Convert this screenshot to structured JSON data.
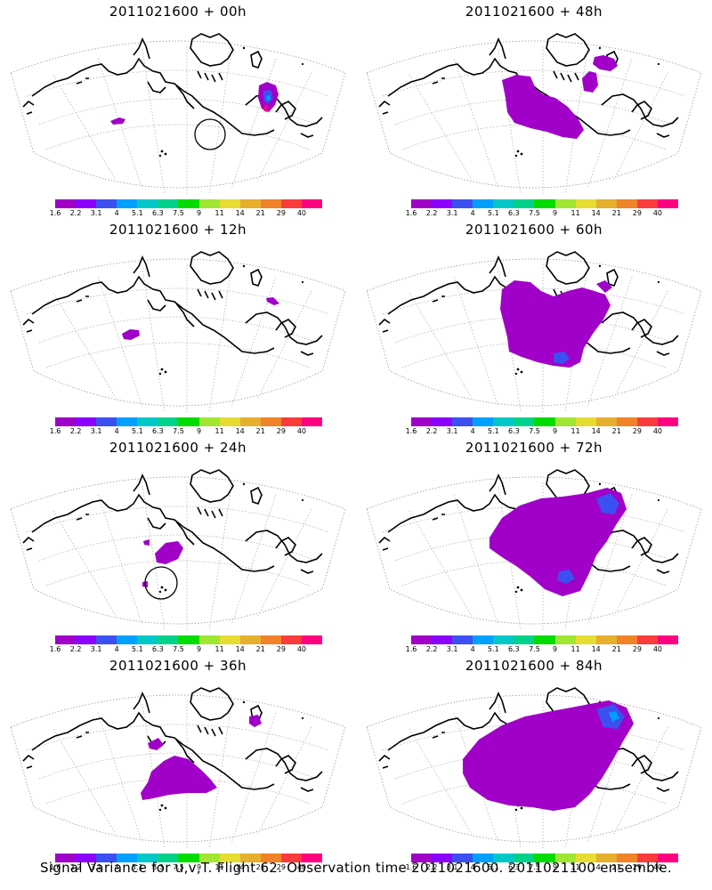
{
  "colorbar": {
    "colors": [
      "#a000c8",
      "#8c00ff",
      "#3c50f0",
      "#00a0ff",
      "#00c8c8",
      "#00d28c",
      "#00dc00",
      "#a0e632",
      "#e6dc32",
      "#e6af2d",
      "#f08228",
      "#fa3c3c",
      "#ff0080"
    ],
    "labels": [
      "1.6",
      "2.2",
      "3.1",
      "4",
      "5.1",
      "6.3",
      "7.5",
      "9",
      "11",
      "14",
      "21",
      "29",
      "40"
    ]
  },
  "panels": [
    {
      "id": "p00",
      "title": "2011021600 + 00h"
    },
    {
      "id": "p12",
      "title": "2011021600 + 12h"
    },
    {
      "id": "p24",
      "title": "2011021600 + 24h"
    },
    {
      "id": "p36",
      "title": "2011021600 + 36h"
    },
    {
      "id": "p48",
      "title": "2011021600 + 48h"
    },
    {
      "id": "p60",
      "title": "2011021600 + 60h"
    },
    {
      "id": "p72",
      "title": "2011021600 + 72h"
    },
    {
      "id": "p84",
      "title": "2011021600 + 84h"
    }
  ],
  "footer": "Signal Variance for u,v,T. Flight 62. Observation time 2011021600. 2011021100 ensemble."
}
